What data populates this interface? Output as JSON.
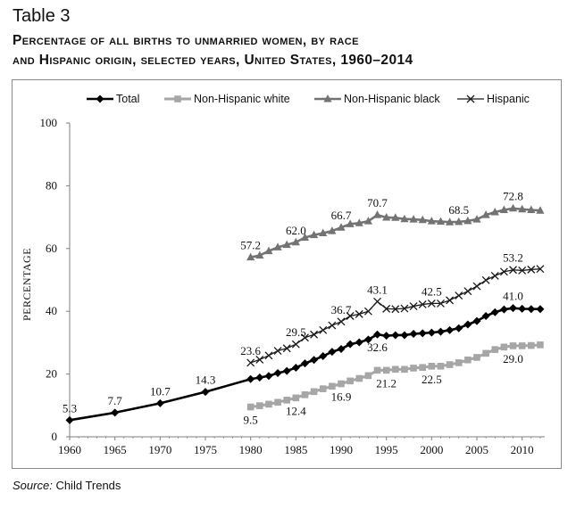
{
  "table_label": "Table 3",
  "title_line1": "Percentage of all births to unmarried women, by race",
  "title_line2": "and Hispanic origin, selected years, United States, 1960–2014",
  "source_label": "Source:",
  "source_text": "Child Trends",
  "colors": {
    "total": "#000000",
    "white": "#a6a6a6",
    "black": "#737373",
    "hispanic": "#1a1a1a",
    "axis": "#7f7f7f"
  },
  "chart_data": {
    "type": "line",
    "ylabel": "PERCENTAGE",
    "xlabel": "",
    "xlim": [
      1960,
      2012.5
    ],
    "ylim": [
      0,
      100
    ],
    "x_ticks": [
      1960,
      1965,
      1970,
      1975,
      1980,
      1985,
      1990,
      1995,
      2000,
      2005,
      2010
    ],
    "y_ticks": [
      0,
      20,
      40,
      60,
      80,
      100
    ],
    "grid": false,
    "legend_position": "top",
    "series": [
      {
        "name": "Total",
        "marker": "diamond",
        "x": [
          1960,
          1965,
          1970,
          1975,
          1980,
          1981,
          1982,
          1983,
          1984,
          1985,
          1986,
          1987,
          1988,
          1989,
          1990,
          1991,
          1992,
          1993,
          1994,
          1995,
          1996,
          1997,
          1998,
          1999,
          2000,
          2001,
          2002,
          2003,
          2004,
          2005,
          2006,
          2007,
          2008,
          2009,
          2010,
          2011,
          2012
        ],
        "y": [
          5.3,
          7.7,
          10.7,
          14.3,
          18.4,
          18.9,
          19.4,
          20.3,
          21.0,
          22.0,
          23.4,
          24.5,
          25.7,
          27.1,
          28.0,
          29.5,
          30.1,
          31.0,
          32.6,
          32.2,
          32.4,
          32.4,
          32.8,
          33.0,
          33.2,
          33.5,
          34.0,
          34.6,
          35.8,
          36.9,
          38.5,
          39.7,
          40.6,
          41.0,
          40.8,
          40.7,
          40.7
        ]
      },
      {
        "name": "Non-Hispanic white",
        "marker": "square",
        "x": [
          1980,
          1981,
          1982,
          1983,
          1984,
          1985,
          1986,
          1987,
          1988,
          1989,
          1990,
          1991,
          1992,
          1993,
          1994,
          1995,
          1996,
          1997,
          1998,
          1999,
          2000,
          2001,
          2002,
          2003,
          2004,
          2005,
          2006,
          2007,
          2008,
          2009,
          2010,
          2011,
          2012
        ],
        "y": [
          9.5,
          9.9,
          10.4,
          11.0,
          11.7,
          12.4,
          13.4,
          14.4,
          15.3,
          16.1,
          16.9,
          17.8,
          18.6,
          19.5,
          21.2,
          21.2,
          21.5,
          21.5,
          21.9,
          22.1,
          22.5,
          22.5,
          23.0,
          23.6,
          24.5,
          25.3,
          26.6,
          27.8,
          28.6,
          29.0,
          29.0,
          29.1,
          29.3
        ]
      },
      {
        "name": "Non-Hispanic black",
        "marker": "triangle",
        "x": [
          1980,
          1981,
          1982,
          1983,
          1984,
          1985,
          1986,
          1987,
          1988,
          1989,
          1990,
          1991,
          1992,
          1993,
          1994,
          1995,
          1996,
          1997,
          1998,
          1999,
          2000,
          2001,
          2002,
          2003,
          2004,
          2005,
          2006,
          2007,
          2008,
          2009,
          2010,
          2011,
          2012
        ],
        "y": [
          57.2,
          57.8,
          59.2,
          60.4,
          61.2,
          62.0,
          63.5,
          64.3,
          64.9,
          65.6,
          66.7,
          67.8,
          68.1,
          68.7,
          70.7,
          69.9,
          69.8,
          69.4,
          69.3,
          69.1,
          68.7,
          68.6,
          68.4,
          68.5,
          68.8,
          69.3,
          70.7,
          71.6,
          72.3,
          72.8,
          72.5,
          72.3,
          72.1
        ]
      },
      {
        "name": "Hispanic",
        "marker": "x",
        "x": [
          1980,
          1981,
          1982,
          1983,
          1984,
          1985,
          1986,
          1987,
          1988,
          1989,
          1990,
          1991,
          1992,
          1993,
          1994,
          1995,
          1996,
          1997,
          1998,
          1999,
          2000,
          2001,
          2002,
          2003,
          2004,
          2005,
          2006,
          2007,
          2008,
          2009,
          2010,
          2011,
          2012
        ],
        "y": [
          23.6,
          24.6,
          25.9,
          27.4,
          28.2,
          29.5,
          31.6,
          32.6,
          34.0,
          35.5,
          36.7,
          38.5,
          39.1,
          40.0,
          43.1,
          40.8,
          40.7,
          40.9,
          41.6,
          42.2,
          42.5,
          42.5,
          43.5,
          45.0,
          46.4,
          48.0,
          49.9,
          51.3,
          52.6,
          53.2,
          53.0,
          53.3,
          53.5
        ]
      }
    ],
    "data_labels": [
      {
        "series": "Total",
        "x": 1960,
        "y": 5.3,
        "text": "5.3",
        "side": "above"
      },
      {
        "series": "Total",
        "x": 1965,
        "y": 7.7,
        "text": "7.7",
        "side": "above"
      },
      {
        "series": "Total",
        "x": 1970,
        "y": 10.7,
        "text": "10.7",
        "side": "above"
      },
      {
        "series": "Total",
        "x": 1975,
        "y": 14.3,
        "text": "14.3",
        "side": "above"
      },
      {
        "series": "Total",
        "x": 1994,
        "y": 32.6,
        "text": "32.6",
        "side": "below"
      },
      {
        "series": "Total",
        "x": 2009,
        "y": 41.0,
        "text": "41.0",
        "side": "above"
      },
      {
        "series": "Non-Hispanic white",
        "x": 1980,
        "y": 9.5,
        "text": "9.5",
        "side": "below"
      },
      {
        "series": "Non-Hispanic white",
        "x": 1985,
        "y": 12.4,
        "text": "12.4",
        "side": "below"
      },
      {
        "series": "Non-Hispanic white",
        "x": 1990,
        "y": 16.9,
        "text": "16.9",
        "side": "below"
      },
      {
        "series": "Non-Hispanic white",
        "x": 1995,
        "y": 21.2,
        "text": "21.2",
        "side": "below"
      },
      {
        "series": "Non-Hispanic white",
        "x": 2000,
        "y": 22.5,
        "text": "22.5",
        "side": "below"
      },
      {
        "series": "Non-Hispanic white",
        "x": 2009,
        "y": 29.0,
        "text": "29.0",
        "side": "below"
      },
      {
        "series": "Non-Hispanic black",
        "x": 1980,
        "y": 57.2,
        "text": "57.2",
        "side": "above"
      },
      {
        "series": "Non-Hispanic black",
        "x": 1985,
        "y": 62.0,
        "text": "62.0",
        "side": "above"
      },
      {
        "series": "Non-Hispanic black",
        "x": 1990,
        "y": 66.7,
        "text": "66.7",
        "side": "above"
      },
      {
        "series": "Non-Hispanic black",
        "x": 1994,
        "y": 70.7,
        "text": "70.7",
        "side": "above"
      },
      {
        "series": "Non-Hispanic black",
        "x": 2003,
        "y": 68.5,
        "text": "68.5",
        "side": "above"
      },
      {
        "series": "Non-Hispanic black",
        "x": 2009,
        "y": 72.8,
        "text": "72.8",
        "side": "above"
      },
      {
        "series": "Hispanic",
        "x": 1980,
        "y": 23.6,
        "text": "23.6",
        "side": "above"
      },
      {
        "series": "Hispanic",
        "x": 1985,
        "y": 29.5,
        "text": "29.5",
        "side": "above"
      },
      {
        "series": "Hispanic",
        "x": 1990,
        "y": 36.7,
        "text": "36.7",
        "side": "above"
      },
      {
        "series": "Hispanic",
        "x": 1994,
        "y": 43.1,
        "text": "43.1",
        "side": "above"
      },
      {
        "series": "Hispanic",
        "x": 2000,
        "y": 42.5,
        "text": "42.5",
        "side": "above"
      },
      {
        "series": "Hispanic",
        "x": 2009,
        "y": 53.2,
        "text": "53.2",
        "side": "above"
      }
    ]
  }
}
